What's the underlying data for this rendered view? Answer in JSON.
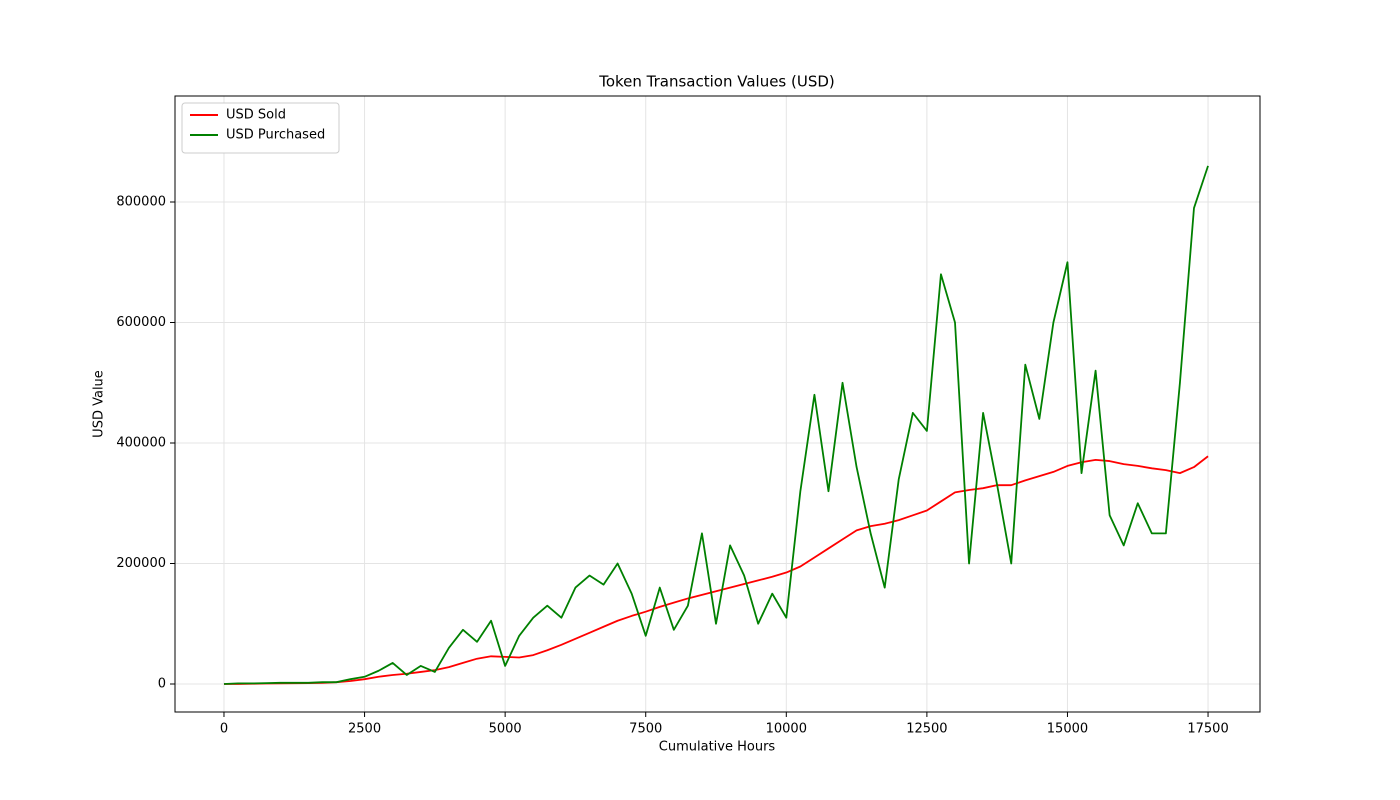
{
  "chart_data": {
    "type": "line",
    "title": "Token Transaction Values (USD)",
    "x_label": "Cumulative Hours",
    "y_label": "USD Value",
    "x": [
      0,
      250,
      500,
      750,
      1000,
      1250,
      1500,
      1750,
      2000,
      2250,
      2500,
      2750,
      3000,
      3250,
      3500,
      3750,
      4000,
      4250,
      4500,
      4750,
      5000,
      5250,
      5500,
      5750,
      6000,
      6250,
      6500,
      6750,
      7000,
      7250,
      7500,
      7750,
      8000,
      8250,
      8500,
      8750,
      9000,
      9250,
      9500,
      9750,
      10000,
      10250,
      10500,
      10750,
      11000,
      11250,
      11500,
      11750,
      12000,
      12250,
      12500,
      12750,
      13000,
      13250,
      13500,
      13750,
      14000,
      14250,
      14500,
      14750,
      15000,
      15250,
      15500,
      15750,
      16000,
      16250,
      16500,
      16750,
      17000,
      17250,
      17500
    ],
    "series": [
      {
        "name": "USD Sold",
        "color": "#ff0000",
        "values": [
          0,
          0,
          500,
          800,
          1000,
          1200,
          1500,
          2000,
          3000,
          5000,
          8000,
          12000,
          15000,
          17000,
          20000,
          23000,
          28000,
          35000,
          42000,
          46000,
          45000,
          44000,
          48000,
          56000,
          65000,
          75000,
          85000,
          95000,
          105000,
          113000,
          120000,
          128000,
          135000,
          142000,
          148000,
          154000,
          160000,
          166000,
          172000,
          178000,
          185000,
          195000,
          210000,
          225000,
          240000,
          255000,
          262000,
          266000,
          272000,
          280000,
          288000,
          303000,
          318000,
          322000,
          325000,
          330000,
          330000,
          338000,
          345000,
          352000,
          362000,
          368000,
          372000,
          370000,
          365000,
          362000,
          358000,
          355000,
          350000,
          360000,
          378000
        ]
      },
      {
        "name": "USD Purchased",
        "color": "#008000",
        "values": [
          0,
          1000,
          1000,
          1500,
          2000,
          2000,
          2000,
          3000,
          3000,
          8000,
          12000,
          22000,
          35000,
          15000,
          30000,
          20000,
          60000,
          90000,
          70000,
          105000,
          30000,
          80000,
          110000,
          130000,
          110000,
          160000,
          180000,
          165000,
          200000,
          150000,
          80000,
          160000,
          90000,
          130000,
          250000,
          100000,
          230000,
          180000,
          100000,
          150000,
          110000,
          320000,
          480000,
          320000,
          500000,
          360000,
          250000,
          160000,
          340000,
          450000,
          420000,
          680000,
          600000,
          200000,
          450000,
          330000,
          200000,
          530000,
          440000,
          600000,
          700000,
          350000,
          520000,
          280000,
          230000,
          300000,
          250000,
          250000,
          500000,
          790000,
          860000
        ]
      }
    ],
    "xlim": [
      -871,
      18424
    ],
    "ylim": [
      -46473,
      975934
    ],
    "xticks": [
      0,
      2500,
      5000,
      7500,
      10000,
      12500,
      15000,
      17500
    ],
    "yticks": [
      0,
      200000,
      400000,
      600000,
      800000
    ],
    "grid": true,
    "legend": "upper left"
  }
}
